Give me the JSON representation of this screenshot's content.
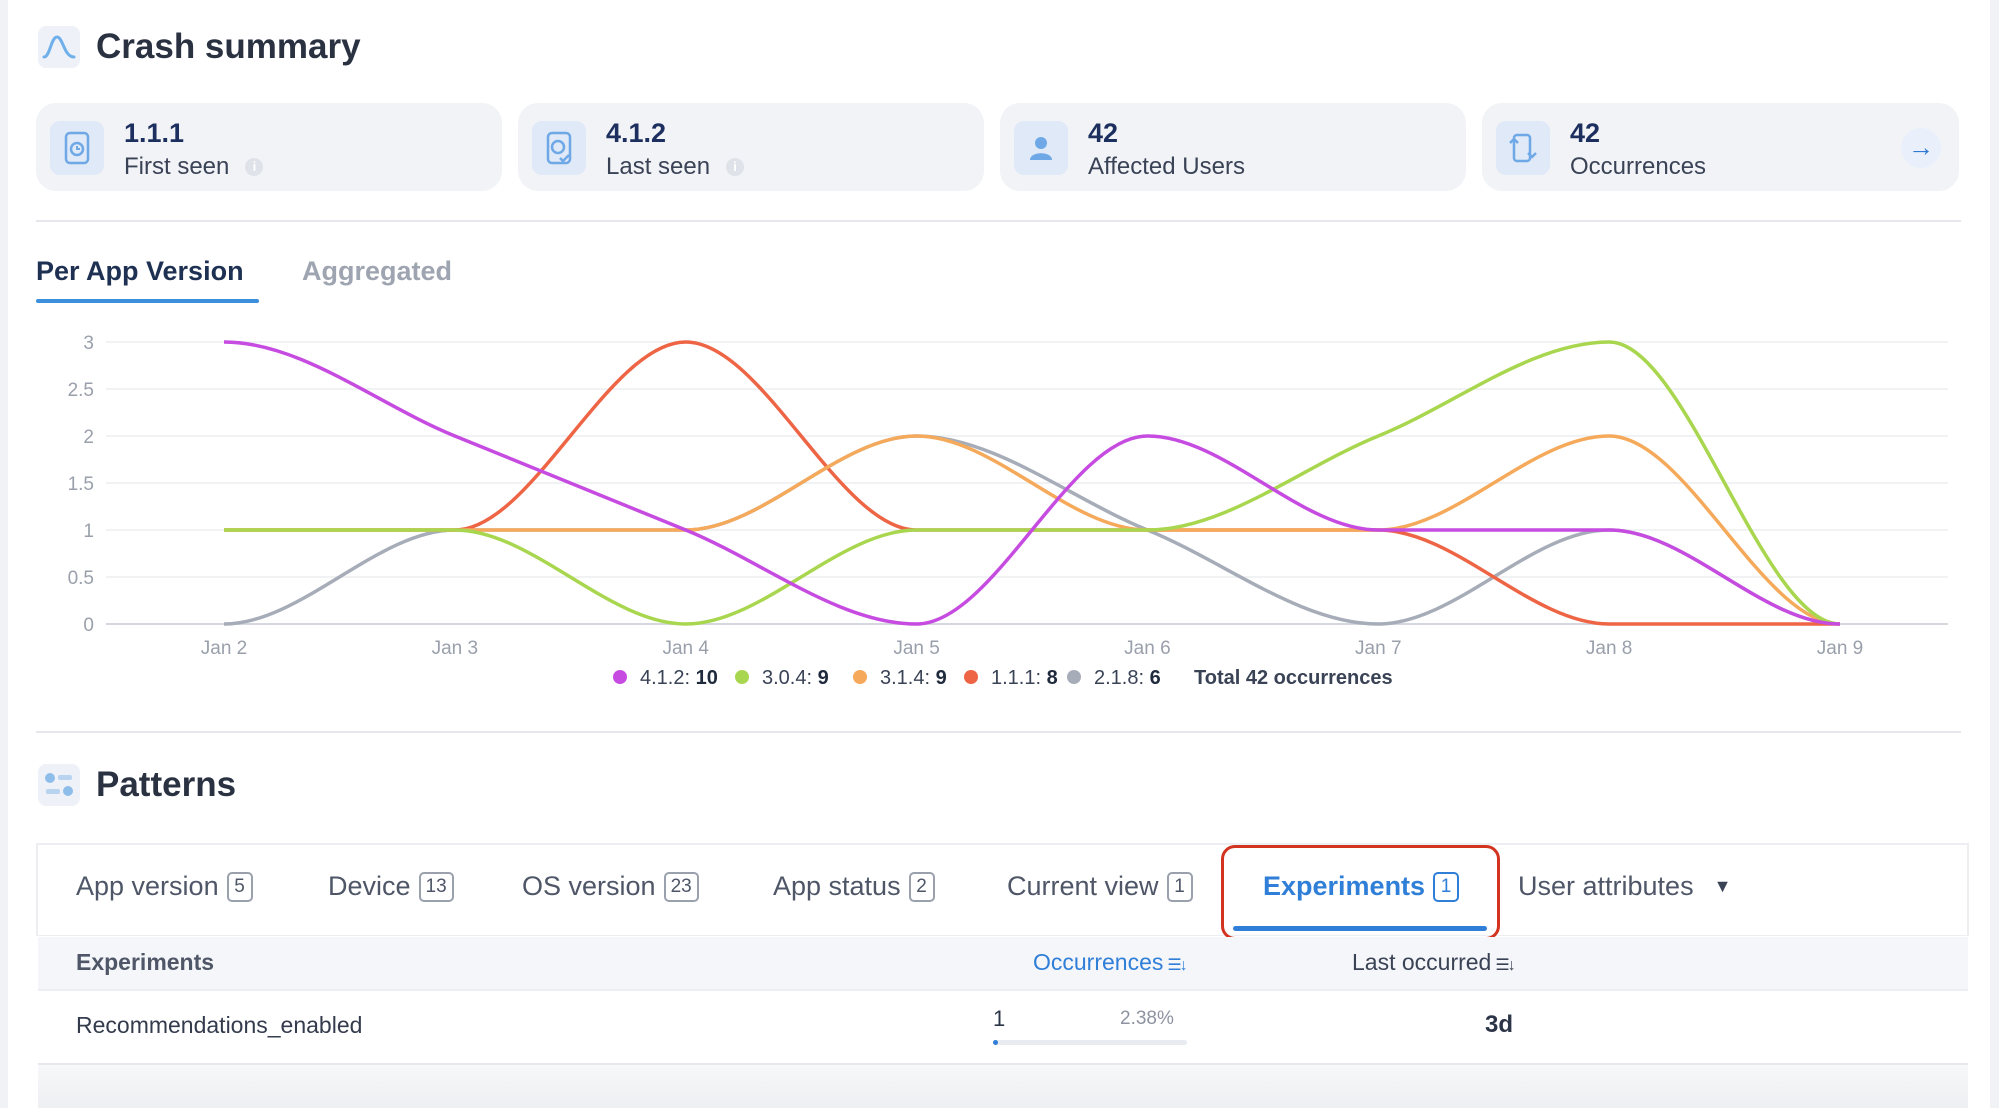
{
  "crash_summary": {
    "title": "Crash summary",
    "cards": [
      {
        "value": "1.1.1",
        "label": "First seen",
        "icon": "app-version-icon"
      },
      {
        "value": "4.1.2",
        "label": "Last seen",
        "icon": "app-version-check-icon"
      },
      {
        "value": "42",
        "label": "Affected Users",
        "icon": "user-icon"
      },
      {
        "value": "42",
        "label": "Occurrences",
        "icon": "occurrences-icon"
      }
    ]
  },
  "version_tabs": {
    "active": "Per App Version",
    "inactive": "Aggregated"
  },
  "chart_data": {
    "type": "line",
    "categories": [
      "Jan 2",
      "Jan 3",
      "Jan 4",
      "Jan 5",
      "Jan 6",
      "Jan 7",
      "Jan 8",
      "Jan 9"
    ],
    "y_ticks": [
      "0",
      "0.5",
      "1",
      "1.5",
      "2",
      "2.5",
      "3"
    ],
    "ylim": [
      0,
      3
    ],
    "grid": true,
    "legend_position": "bottom",
    "series": [
      {
        "name": "4.1.2",
        "total": "10",
        "color": "#c64be0",
        "values": [
          3,
          2,
          1,
          0,
          2,
          1,
          1,
          0
        ]
      },
      {
        "name": "3.0.4",
        "total": "9",
        "color": "#a9d64f",
        "values": [
          1,
          1,
          0,
          1,
          1,
          2,
          3,
          0
        ]
      },
      {
        "name": "3.1.4",
        "total": "9",
        "color": "#f5a95a",
        "values": [
          1,
          1,
          1,
          2,
          1,
          1,
          2,
          0
        ]
      },
      {
        "name": "1.1.1",
        "total": "8",
        "color": "#ee6545",
        "values": [
          1,
          1,
          3,
          1,
          1,
          1,
          0,
          0
        ]
      },
      {
        "name": "2.1.8",
        "total": "6",
        "color": "#a7adb8",
        "values": [
          0,
          1,
          1,
          2,
          1,
          0,
          1,
          0
        ]
      }
    ],
    "total_label": "Total 42 occurrences"
  },
  "patterns": {
    "title": "Patterns",
    "tabs": [
      {
        "label": "App version",
        "count": "5"
      },
      {
        "label": "Device",
        "count": "13"
      },
      {
        "label": "OS version",
        "count": "23"
      },
      {
        "label": "App status",
        "count": "2"
      },
      {
        "label": "Current view",
        "count": "1"
      },
      {
        "label": "Experiments",
        "count": "1",
        "active": true
      },
      {
        "label": "User attributes",
        "dropdown": true
      }
    ],
    "table": {
      "columns": {
        "name": "Experiments",
        "occurrences": "Occurrences",
        "last": "Last occurred"
      },
      "rows": [
        {
          "name": "Recommendations_enabled",
          "count": "1",
          "percent": "2.38%",
          "fraction": 0.0238,
          "last": "3d"
        }
      ]
    }
  },
  "colors": {
    "accent": "#2f7fd9",
    "highlight": "#d23420"
  }
}
